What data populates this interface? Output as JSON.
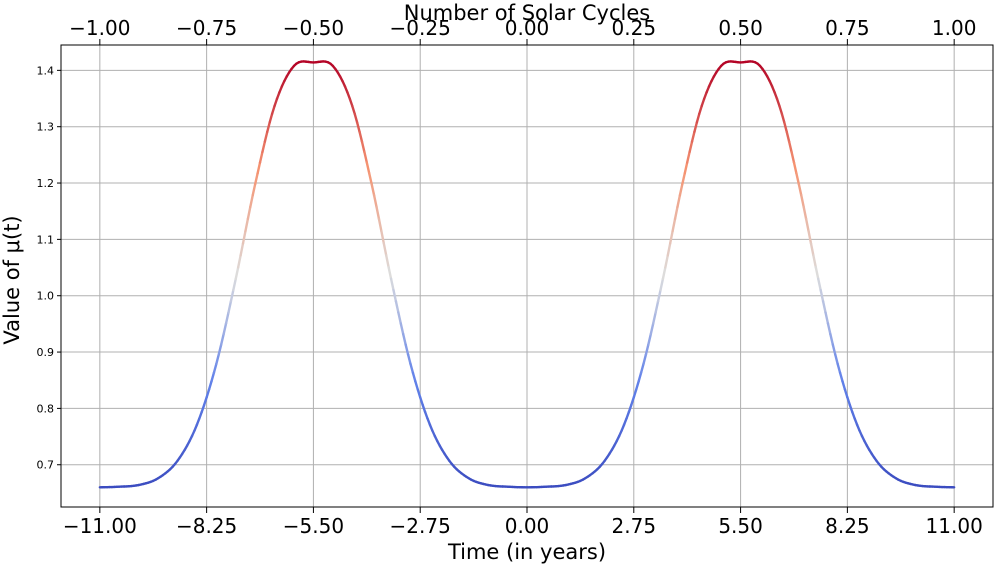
{
  "chart_data": {
    "type": "line",
    "title": "",
    "xlabel": "Time (in years)",
    "ylabel": "Value of μ(t)",
    "top_xlabel": "Number of Solar Cycles",
    "xlim": [
      -12.0,
      12.0
    ],
    "ylim": [
      0.625,
      1.445
    ],
    "x_ticks": [
      -11.0,
      -8.25,
      -5.5,
      -2.75,
      0.0,
      2.75,
      5.5,
      8.25,
      11.0
    ],
    "x_tick_labels": [
      "−11.00",
      "−8.25",
      "−5.50",
      "−2.75",
      "0.00",
      "2.75",
      "5.50",
      "8.25",
      "11.00"
    ],
    "top_x_ticks": [
      -1.0,
      -0.75,
      -0.5,
      -0.25,
      0.0,
      0.25,
      0.5,
      0.75,
      1.0
    ],
    "top_x_tick_labels": [
      "−1.00",
      "−0.75",
      "−0.50",
      "−0.25",
      "0.00",
      "0.25",
      "0.50",
      "0.75",
      "1.00"
    ],
    "top_axis_cycle_length_years": 11,
    "y_ticks": [
      0.7,
      0.8,
      0.9,
      1.0,
      1.1,
      1.2,
      1.3,
      1.4
    ],
    "y_tick_labels": [
      "0.7",
      "0.8",
      "0.9",
      "1.0",
      "1.1",
      "1.2",
      "1.3",
      "1.4"
    ],
    "grid": true,
    "colormap": "coolwarm",
    "series": [
      {
        "x": [
          -11.0,
          -10.5,
          -10.0,
          -9.5,
          -9.0,
          -8.5,
          -8.0,
          -7.5,
          -7.0,
          -6.5,
          -6.0,
          -5.5,
          -5.0,
          -4.5,
          -4.0,
          -3.5,
          -3.0,
          -2.5,
          -2.0,
          -1.5,
          -1.0,
          -0.5,
          0.0,
          0.5,
          1.0,
          1.5,
          2.0,
          2.5,
          3.0,
          3.5,
          4.0,
          4.5,
          5.0,
          5.5,
          6.0,
          6.5,
          7.0,
          7.5,
          8.0,
          8.5,
          9.0,
          9.5,
          10.0,
          10.5,
          11.0
        ],
        "y": [
          0.66,
          0.661,
          0.664,
          0.676,
          0.707,
          0.771,
          0.879,
          1.03,
          1.198,
          1.337,
          1.408,
          1.414,
          1.408,
          1.337,
          1.198,
          1.03,
          0.879,
          0.771,
          0.707,
          0.676,
          0.664,
          0.661,
          0.66,
          0.661,
          0.664,
          0.676,
          0.707,
          0.771,
          0.879,
          1.03,
          1.198,
          1.337,
          1.408,
          1.414,
          1.408,
          1.337,
          1.198,
          1.03,
          0.879,
          0.771,
          0.707,
          0.676,
          0.664,
          0.661,
          0.66
        ]
      }
    ]
  }
}
